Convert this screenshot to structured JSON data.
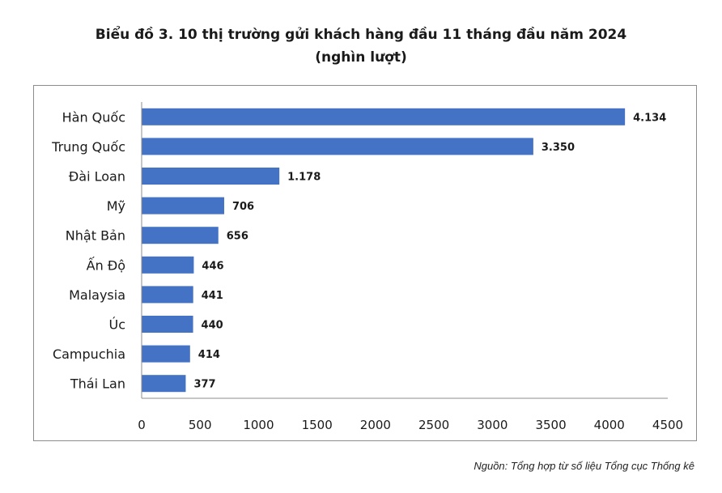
{
  "chart_data": {
    "type": "bar",
    "orientation": "horizontal",
    "title": "Biểu đồ 3. 10 thị trường gửi khách hàng đầu 11 tháng đầu năm 2024",
    "subtitle": "(nghìn lượt)",
    "categories": [
      "Hàn Quốc",
      "Trung Quốc",
      "Đài Loan",
      "Mỹ",
      "Nhật Bản",
      "Ấn Độ",
      "Malaysia",
      "Úc",
      "Campuchia",
      "Thái Lan"
    ],
    "values": [
      4134,
      3350,
      1178,
      706,
      656,
      446,
      441,
      440,
      414,
      377
    ],
    "value_labels": [
      "4.134",
      "3.350",
      "1.178",
      "706",
      "656",
      "446",
      "441",
      "440",
      "414",
      "377"
    ],
    "xticks": [
      "0",
      "500",
      "1000",
      "1500",
      "2000",
      "2500",
      "3000",
      "3500",
      "4000",
      "4500"
    ],
    "xlim": [
      0,
      4500
    ],
    "bar_color": "#4472c4",
    "grid": false,
    "legend": "none"
  },
  "source": "Nguồn: Tổng hợp từ số liệu Tổng cục Thống kê"
}
